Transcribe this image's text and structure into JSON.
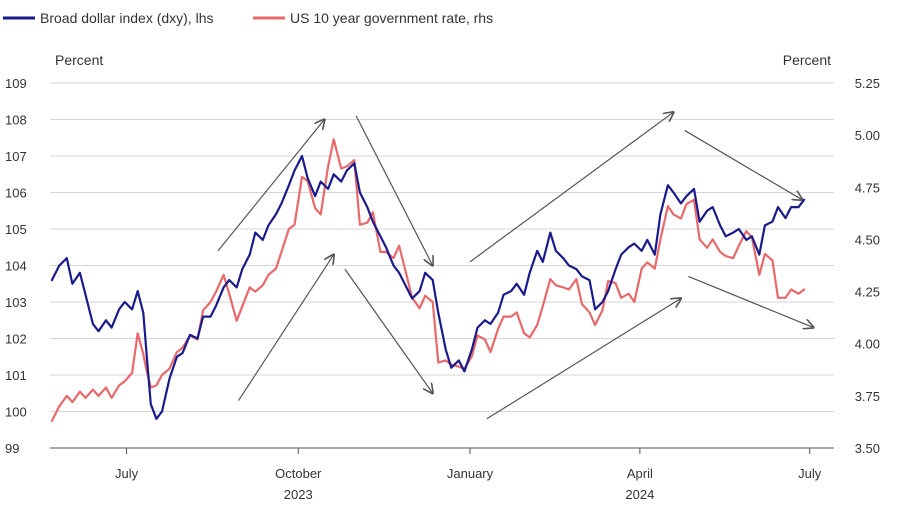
{
  "chart_data": {
    "type": "line",
    "title": "",
    "legend": [
      {
        "name": "Broad dollar index (dxy), lhs",
        "color": "#1a1a8c"
      },
      {
        "name": "US 10 year government rate, rhs",
        "color": "#e8696b"
      }
    ],
    "y_left": {
      "unit": "Percent",
      "ylim": [
        99,
        109
      ],
      "ticks": [
        "99",
        "100",
        "101",
        "102",
        "103",
        "104",
        "105",
        "106",
        "107",
        "108",
        "109"
      ]
    },
    "y_right": {
      "unit": "Percent",
      "ylim": [
        3.5,
        5.25
      ],
      "ticks": [
        "3.50",
        "3.75",
        "4.00",
        "4.25",
        "4.50",
        "4.75",
        "5.00",
        "5.25"
      ]
    },
    "x_axis": {
      "range": [
        "2023-05-21",
        "2024-07-14"
      ],
      "ticks": [
        {
          "date": "2023-07-01",
          "label": "July"
        },
        {
          "date": "2023-10-01",
          "label": "October"
        },
        {
          "date": "2024-01-01",
          "label": "January"
        },
        {
          "date": "2024-04-01",
          "label": "April"
        },
        {
          "date": "2024-07-01",
          "label": "July"
        }
      ],
      "year_labels": [
        {
          "date": "2023-10-01",
          "label": "2023"
        },
        {
          "date": "2024-04-01",
          "label": "2024"
        }
      ]
    },
    "grid": "horizontal",
    "legend_position": "top-left",
    "series": [
      {
        "name": "Broad dollar index (dxy), lhs",
        "axis": "left",
        "color": "#1a1a8c",
        "points": [
          [
            "2023-05-22",
            103.6
          ],
          [
            "2023-05-26",
            104.0
          ],
          [
            "2023-05-30",
            104.2
          ],
          [
            "2023-06-02",
            103.5
          ],
          [
            "2023-06-06",
            103.8
          ],
          [
            "2023-06-09",
            103.2
          ],
          [
            "2023-06-13",
            102.4
          ],
          [
            "2023-06-16",
            102.2
          ],
          [
            "2023-06-20",
            102.5
          ],
          [
            "2023-06-23",
            102.3
          ],
          [
            "2023-06-27",
            102.8
          ],
          [
            "2023-06-30",
            103.0
          ],
          [
            "2023-07-04",
            102.8
          ],
          [
            "2023-07-07",
            103.3
          ],
          [
            "2023-07-10",
            102.7
          ],
          [
            "2023-07-12",
            101.4
          ],
          [
            "2023-07-14",
            100.2
          ],
          [
            "2023-07-17",
            99.8
          ],
          [
            "2023-07-20",
            100.0
          ],
          [
            "2023-07-24",
            100.9
          ],
          [
            "2023-07-28",
            101.5
          ],
          [
            "2023-07-31",
            101.6
          ],
          [
            "2023-08-04",
            102.1
          ],
          [
            "2023-08-08",
            102.0
          ],
          [
            "2023-08-11",
            102.6
          ],
          [
            "2023-08-15",
            102.6
          ],
          [
            "2023-08-18",
            102.9
          ],
          [
            "2023-08-22",
            103.4
          ],
          [
            "2023-08-25",
            103.6
          ],
          [
            "2023-08-29",
            103.4
          ],
          [
            "2023-09-01",
            103.9
          ],
          [
            "2023-09-05",
            104.3
          ],
          [
            "2023-09-08",
            104.9
          ],
          [
            "2023-09-12",
            104.7
          ],
          [
            "2023-09-15",
            105.1
          ],
          [
            "2023-09-19",
            105.4
          ],
          [
            "2023-09-22",
            105.7
          ],
          [
            "2023-09-26",
            106.2
          ],
          [
            "2023-09-29",
            106.6
          ],
          [
            "2023-10-03",
            107.0
          ],
          [
            "2023-10-06",
            106.4
          ],
          [
            "2023-10-10",
            105.9
          ],
          [
            "2023-10-13",
            106.3
          ],
          [
            "2023-10-17",
            106.1
          ],
          [
            "2023-10-20",
            106.5
          ],
          [
            "2023-10-24",
            106.3
          ],
          [
            "2023-10-27",
            106.6
          ],
          [
            "2023-10-31",
            106.8
          ],
          [
            "2023-11-03",
            106.0
          ],
          [
            "2023-11-07",
            105.6
          ],
          [
            "2023-11-10",
            105.2
          ],
          [
            "2023-11-14",
            104.8
          ],
          [
            "2023-11-17",
            104.5
          ],
          [
            "2023-11-21",
            104.0
          ],
          [
            "2023-11-24",
            103.8
          ],
          [
            "2023-11-28",
            103.4
          ],
          [
            "2023-12-01",
            103.1
          ],
          [
            "2023-12-05",
            103.3
          ],
          [
            "2023-12-08",
            103.8
          ],
          [
            "2023-12-12",
            103.6
          ],
          [
            "2023-12-15",
            102.7
          ],
          [
            "2023-12-19",
            101.7
          ],
          [
            "2023-12-22",
            101.2
          ],
          [
            "2023-12-26",
            101.4
          ],
          [
            "2023-12-29",
            101.1
          ],
          [
            "2024-01-02",
            101.7
          ],
          [
            "2024-01-05",
            102.3
          ],
          [
            "2024-01-09",
            102.5
          ],
          [
            "2024-01-12",
            102.4
          ],
          [
            "2024-01-16",
            102.7
          ],
          [
            "2024-01-19",
            103.2
          ],
          [
            "2024-01-23",
            103.3
          ],
          [
            "2024-01-26",
            103.5
          ],
          [
            "2024-01-30",
            103.2
          ],
          [
            "2024-02-02",
            103.8
          ],
          [
            "2024-02-06",
            104.4
          ],
          [
            "2024-02-09",
            104.1
          ],
          [
            "2024-02-13",
            104.9
          ],
          [
            "2024-02-16",
            104.4
          ],
          [
            "2024-02-20",
            104.2
          ],
          [
            "2024-02-23",
            104.0
          ],
          [
            "2024-02-27",
            103.9
          ],
          [
            "2024-03-01",
            103.7
          ],
          [
            "2024-03-05",
            103.6
          ],
          [
            "2024-03-08",
            102.8
          ],
          [
            "2024-03-12",
            103.0
          ],
          [
            "2024-03-15",
            103.3
          ],
          [
            "2024-03-19",
            103.9
          ],
          [
            "2024-03-22",
            104.3
          ],
          [
            "2024-03-26",
            104.5
          ],
          [
            "2024-03-29",
            104.6
          ],
          [
            "2024-04-02",
            104.4
          ],
          [
            "2024-04-05",
            104.7
          ],
          [
            "2024-04-09",
            104.3
          ],
          [
            "2024-04-12",
            105.4
          ],
          [
            "2024-04-16",
            106.2
          ],
          [
            "2024-04-19",
            106.0
          ],
          [
            "2024-04-23",
            105.7
          ],
          [
            "2024-04-26",
            105.9
          ],
          [
            "2024-04-30",
            106.1
          ],
          [
            "2024-05-03",
            105.2
          ],
          [
            "2024-05-07",
            105.5
          ],
          [
            "2024-05-10",
            105.6
          ],
          [
            "2024-05-14",
            105.1
          ],
          [
            "2024-05-17",
            104.8
          ],
          [
            "2024-05-21",
            104.9
          ],
          [
            "2024-05-24",
            105.0
          ],
          [
            "2024-05-28",
            104.7
          ],
          [
            "2024-05-31",
            104.8
          ],
          [
            "2024-06-04",
            104.3
          ],
          [
            "2024-06-07",
            105.1
          ],
          [
            "2024-06-11",
            105.2
          ],
          [
            "2024-06-14",
            105.6
          ],
          [
            "2024-06-18",
            105.3
          ],
          [
            "2024-06-21",
            105.6
          ],
          [
            "2024-06-25",
            105.6
          ],
          [
            "2024-06-28",
            105.8
          ]
        ]
      },
      {
        "name": "US 10 year government rate, rhs",
        "axis": "right",
        "color": "#e8696b",
        "points": [
          [
            "2023-05-22",
            3.63
          ],
          [
            "2023-05-26",
            3.7
          ],
          [
            "2023-05-30",
            3.75
          ],
          [
            "2023-06-02",
            3.72
          ],
          [
            "2023-06-06",
            3.77
          ],
          [
            "2023-06-09",
            3.74
          ],
          [
            "2023-06-13",
            3.78
          ],
          [
            "2023-06-16",
            3.75
          ],
          [
            "2023-06-20",
            3.79
          ],
          [
            "2023-06-23",
            3.74
          ],
          [
            "2023-06-27",
            3.8
          ],
          [
            "2023-06-30",
            3.82
          ],
          [
            "2023-07-04",
            3.86
          ],
          [
            "2023-07-07",
            4.05
          ],
          [
            "2023-07-10",
            3.95
          ],
          [
            "2023-07-12",
            3.86
          ],
          [
            "2023-07-14",
            3.79
          ],
          [
            "2023-07-17",
            3.8
          ],
          [
            "2023-07-20",
            3.85
          ],
          [
            "2023-07-24",
            3.88
          ],
          [
            "2023-07-28",
            3.96
          ],
          [
            "2023-07-31",
            3.98
          ],
          [
            "2023-08-04",
            4.04
          ],
          [
            "2023-08-08",
            4.02
          ],
          [
            "2023-08-11",
            4.16
          ],
          [
            "2023-08-15",
            4.2
          ],
          [
            "2023-08-18",
            4.25
          ],
          [
            "2023-08-22",
            4.33
          ],
          [
            "2023-08-25",
            4.24
          ],
          [
            "2023-08-29",
            4.11
          ],
          [
            "2023-09-01",
            4.18
          ],
          [
            "2023-09-05",
            4.27
          ],
          [
            "2023-09-08",
            4.25
          ],
          [
            "2023-09-12",
            4.28
          ],
          [
            "2023-09-15",
            4.33
          ],
          [
            "2023-09-19",
            4.36
          ],
          [
            "2023-09-22",
            4.44
          ],
          [
            "2023-09-26",
            4.55
          ],
          [
            "2023-09-29",
            4.57
          ],
          [
            "2023-10-03",
            4.8
          ],
          [
            "2023-10-06",
            4.78
          ],
          [
            "2023-10-10",
            4.65
          ],
          [
            "2023-10-13",
            4.62
          ],
          [
            "2023-10-17",
            4.85
          ],
          [
            "2023-10-20",
            4.98
          ],
          [
            "2023-10-24",
            4.84
          ],
          [
            "2023-10-27",
            4.85
          ],
          [
            "2023-10-31",
            4.88
          ],
          [
            "2023-11-03",
            4.57
          ],
          [
            "2023-11-07",
            4.58
          ],
          [
            "2023-11-10",
            4.63
          ],
          [
            "2023-11-14",
            4.44
          ],
          [
            "2023-11-17",
            4.44
          ],
          [
            "2023-11-21",
            4.41
          ],
          [
            "2023-11-24",
            4.47
          ],
          [
            "2023-11-28",
            4.33
          ],
          [
            "2023-12-01",
            4.22
          ],
          [
            "2023-12-05",
            4.17
          ],
          [
            "2023-12-08",
            4.23
          ],
          [
            "2023-12-12",
            4.2
          ],
          [
            "2023-12-15",
            3.91
          ],
          [
            "2023-12-19",
            3.92
          ],
          [
            "2023-12-22",
            3.9
          ],
          [
            "2023-12-26",
            3.89
          ],
          [
            "2023-12-29",
            3.88
          ],
          [
            "2024-01-02",
            3.94
          ],
          [
            "2024-01-05",
            4.04
          ],
          [
            "2024-01-09",
            4.02
          ],
          [
            "2024-01-12",
            3.96
          ],
          [
            "2024-01-16",
            4.07
          ],
          [
            "2024-01-19",
            4.13
          ],
          [
            "2024-01-23",
            4.13
          ],
          [
            "2024-01-26",
            4.15
          ],
          [
            "2024-01-30",
            4.05
          ],
          [
            "2024-02-02",
            4.03
          ],
          [
            "2024-02-06",
            4.09
          ],
          [
            "2024-02-09",
            4.18
          ],
          [
            "2024-02-13",
            4.31
          ],
          [
            "2024-02-16",
            4.28
          ],
          [
            "2024-02-20",
            4.27
          ],
          [
            "2024-02-23",
            4.26
          ],
          [
            "2024-02-27",
            4.31
          ],
          [
            "2024-03-01",
            4.19
          ],
          [
            "2024-03-05",
            4.15
          ],
          [
            "2024-03-08",
            4.09
          ],
          [
            "2024-03-12",
            4.16
          ],
          [
            "2024-03-15",
            4.3
          ],
          [
            "2024-03-19",
            4.29
          ],
          [
            "2024-03-22",
            4.22
          ],
          [
            "2024-03-26",
            4.24
          ],
          [
            "2024-03-29",
            4.2
          ],
          [
            "2024-04-02",
            4.36
          ],
          [
            "2024-04-05",
            4.39
          ],
          [
            "2024-04-09",
            4.36
          ],
          [
            "2024-04-12",
            4.5
          ],
          [
            "2024-04-16",
            4.66
          ],
          [
            "2024-04-19",
            4.62
          ],
          [
            "2024-04-23",
            4.6
          ],
          [
            "2024-04-26",
            4.67
          ],
          [
            "2024-04-30",
            4.69
          ],
          [
            "2024-05-03",
            4.5
          ],
          [
            "2024-05-07",
            4.46
          ],
          [
            "2024-05-10",
            4.5
          ],
          [
            "2024-05-14",
            4.44
          ],
          [
            "2024-05-17",
            4.42
          ],
          [
            "2024-05-21",
            4.41
          ],
          [
            "2024-05-24",
            4.47
          ],
          [
            "2024-05-28",
            4.54
          ],
          [
            "2024-05-31",
            4.51
          ],
          [
            "2024-06-04",
            4.33
          ],
          [
            "2024-06-07",
            4.43
          ],
          [
            "2024-06-11",
            4.4
          ],
          [
            "2024-06-14",
            4.22
          ],
          [
            "2024-06-18",
            4.22
          ],
          [
            "2024-06-21",
            4.26
          ],
          [
            "2024-06-25",
            4.24
          ],
          [
            "2024-06-28",
            4.26
          ]
        ]
      }
    ],
    "annotations": {
      "arrows": [
        {
          "from": [
            "2023-08-19",
            104.4
          ],
          "to": [
            "2023-10-15",
            108.0
          ]
        },
        {
          "from": [
            "2023-08-30",
            100.3
          ],
          "to": [
            "2023-10-20",
            104.3
          ]
        },
        {
          "from": [
            "2023-11-01",
            108.1
          ],
          "to": [
            "2023-12-12",
            104.0
          ]
        },
        {
          "from": [
            "2023-10-26",
            103.9
          ],
          "to": [
            "2023-12-12",
            100.5
          ]
        },
        {
          "from": [
            "2024-01-01",
            104.1
          ],
          "to": [
            "2024-04-19",
            108.2
          ]
        },
        {
          "from": [
            "2024-01-10",
            99.8
          ],
          "to": [
            "2024-04-23",
            103.1
          ]
        },
        {
          "from": [
            "2024-04-25",
            107.7
          ],
          "to": [
            "2024-06-27",
            105.8
          ]
        },
        {
          "from": [
            "2024-04-27",
            103.7
          ],
          "to": [
            "2024-07-03",
            102.3
          ]
        }
      ]
    }
  }
}
